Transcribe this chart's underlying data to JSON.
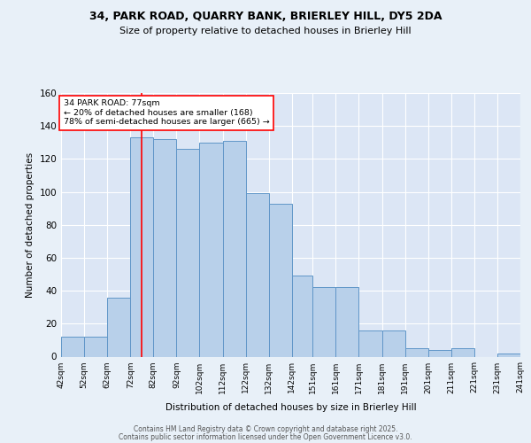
{
  "title_line1": "34, PARK ROAD, QUARRY BANK, BRIERLEY HILL, DY5 2DA",
  "title_line2": "Size of property relative to detached houses in Brierley Hill",
  "xlabel": "Distribution of detached houses by size in Brierley Hill",
  "ylabel": "Number of detached properties",
  "tick_positions": [
    42,
    52,
    62,
    72,
    82,
    92,
    102,
    112,
    122,
    132,
    142,
    151,
    161,
    171,
    181,
    191,
    201,
    211,
    221,
    231,
    241
  ],
  "bar_heights": [
    12,
    12,
    36,
    133,
    132,
    126,
    130,
    131,
    99,
    93,
    49,
    42,
    42,
    16,
    16,
    5,
    4,
    5,
    0,
    2
  ],
  "annotation_text": "34 PARK ROAD: 77sqm\n← 20% of detached houses are smaller (168)\n78% of semi-detached houses are larger (665) →",
  "red_line_x": 77,
  "bar_color": "#b8d0ea",
  "bar_edge_color": "#6096c8",
  "background_color": "#e8f0f8",
  "plot_bg_color": "#dce6f5",
  "grid_color": "#ffffff",
  "footer_line1": "Contains HM Land Registry data © Crown copyright and database right 2025.",
  "footer_line2": "Contains public sector information licensed under the Open Government Licence v3.0.",
  "ylim": [
    0,
    160
  ],
  "yticks": [
    0,
    20,
    40,
    60,
    80,
    100,
    120,
    140,
    160
  ]
}
